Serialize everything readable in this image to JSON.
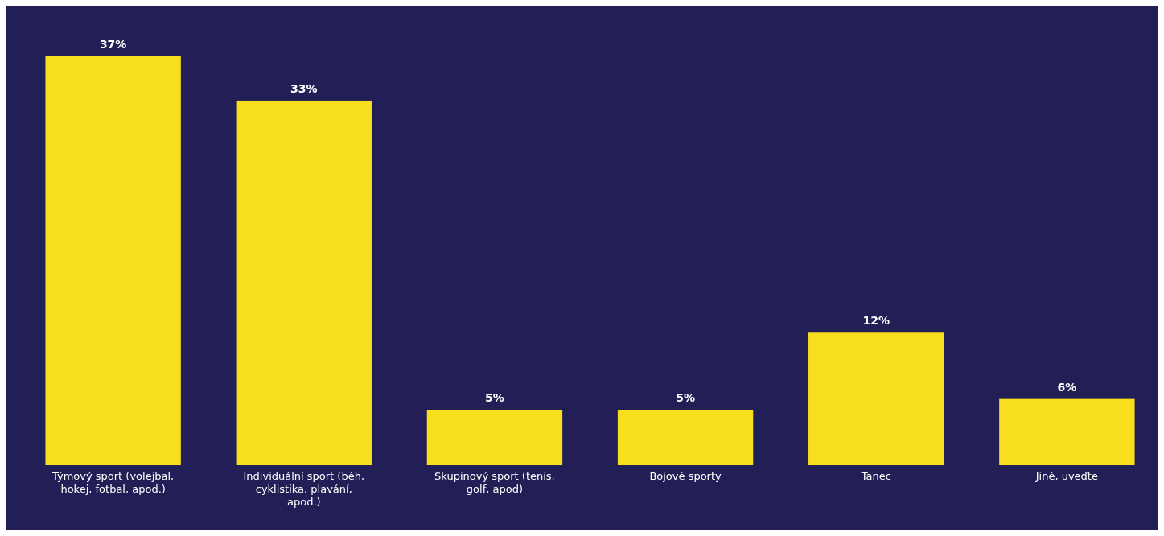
{
  "chart_data": {
    "type": "bar",
    "categories": [
      "Týmový sport (volejbal, hokej, fotbal, apod.)",
      "Individuální sport (běh, cyklistika, plavání, apod.)",
      "Skupinový sport (tenis, golf, apod)",
      "Bojové sporty",
      "Tanec",
      "Jiné, uveďte"
    ],
    "values": [
      37,
      33,
      5,
      5,
      12,
      6
    ],
    "value_labels": [
      "37%",
      "33%",
      "5%",
      "5%",
      "12%",
      "6%"
    ],
    "color": "#f7df1e"
  }
}
